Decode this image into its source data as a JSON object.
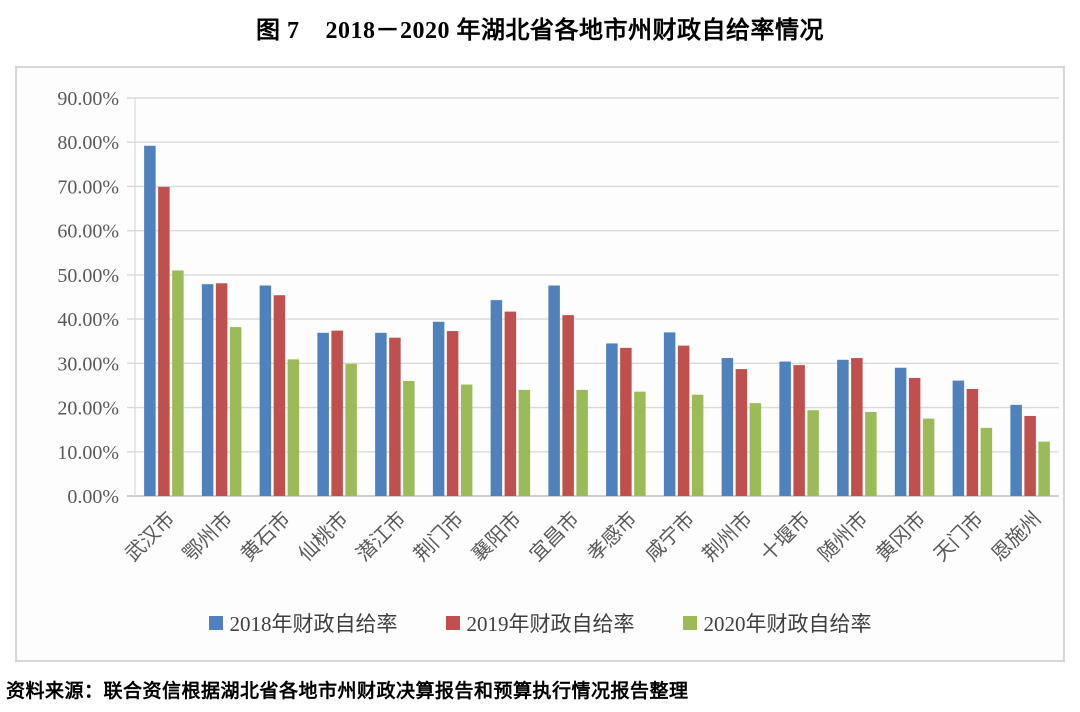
{
  "header": {
    "figure_label": "图 7",
    "title": "2018－2020 年湖北省各地市州财政自给率情况"
  },
  "footer": {
    "source_prefix": "资料来源：",
    "source_text": "联合资信根据湖北省各地市州财政决算报告和预算执行情况报告整理"
  },
  "colors": {
    "series_2018": "#4F81BD",
    "series_2019": "#C0504D",
    "series_2020": "#9BBB59",
    "gridline": "#D9D9D9",
    "axis_line": "#BFBFBF",
    "axis_text": "#595959",
    "chart_border": "#D6D6D6"
  },
  "chart_data": {
    "type": "bar",
    "title": "图 7　2018－2020 年湖北省各地市州财政自给率情况",
    "categories": [
      "武汉市",
      "鄂州市",
      "黄石市",
      "仙桃市",
      "潜江市",
      "荆门市",
      "襄阳市",
      "宜昌市",
      "孝感市",
      "咸宁市",
      "荆州市",
      "十堰市",
      "随州市",
      "黄冈市",
      "天门市",
      "恩施州"
    ],
    "series": [
      {
        "name": "2018年财政自给率",
        "color": "#4F81BD",
        "values": [
          79.2,
          47.9,
          47.6,
          36.9,
          36.9,
          39.4,
          44.3,
          47.6,
          34.5,
          37.0,
          31.2,
          30.4,
          30.8,
          29.0,
          26.1,
          20.6
        ]
      },
      {
        "name": "2019年财政自给率",
        "color": "#C0504D",
        "values": [
          69.9,
          48.1,
          45.4,
          37.4,
          35.8,
          37.3,
          41.7,
          40.9,
          33.5,
          34.0,
          28.7,
          29.6,
          31.2,
          26.7,
          24.2,
          18.1
        ]
      },
      {
        "name": "2020年财政自给率",
        "color": "#9BBB59",
        "values": [
          51.0,
          38.2,
          30.9,
          29.9,
          26.0,
          25.2,
          24.0,
          24.0,
          23.6,
          22.9,
          21.0,
          19.4,
          19.0,
          17.5,
          15.4,
          12.3
        ]
      }
    ],
    "xlabel": "",
    "ylabel": "",
    "ylim": [
      0,
      90
    ],
    "ytick_step": 10,
    "ytick_format": "0.00%",
    "grid": true,
    "legend_position": "bottom"
  }
}
